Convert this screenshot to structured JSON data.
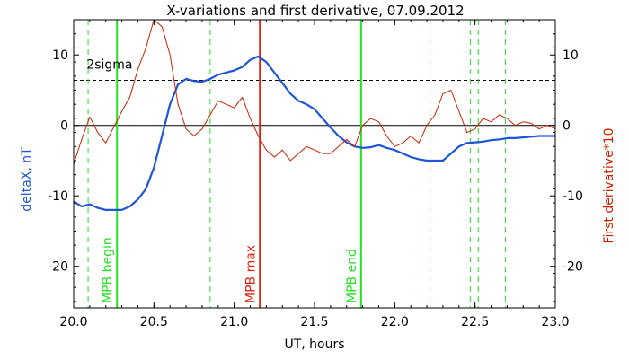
{
  "chart_data": {
    "type": "line",
    "title": "X-variations and first derivative, 07.09.2012",
    "xlabel": "UT, hours",
    "ylabel_left": "deltaX, nT",
    "ylabel_right": "First derivative*10",
    "xlim": [
      20.0,
      23.0
    ],
    "ylim": [
      -25.9,
      15.0
    ],
    "x_ticks": [
      20.0,
      20.5,
      21.0,
      21.5,
      22.0,
      22.5,
      23.0
    ],
    "x_tick_labels": [
      "20.0",
      "20.5",
      "21.0",
      "21.5",
      "22.0",
      "22.5",
      "23.0"
    ],
    "y_ticks": [
      10,
      0,
      -10,
      -20
    ],
    "y_tick_labels": [
      "10",
      "0",
      "-10",
      "-20"
    ],
    "grid": false,
    "colors": {
      "deltaX": "#1f55d6",
      "derivative": "#cc2200",
      "mpb_marker": "#22e022",
      "max_marker": "#e02010",
      "ref_line": "#000000"
    },
    "series": [
      {
        "name": "deltaX, nT",
        "x": [
          20.0,
          20.05,
          20.1,
          20.15,
          20.2,
          20.25,
          20.3,
          20.35,
          20.4,
          20.45,
          20.5,
          20.55,
          20.6,
          20.65,
          20.7,
          20.75,
          20.8,
          20.85,
          20.9,
          20.95,
          21.0,
          21.05,
          21.1,
          21.15,
          21.2,
          21.25,
          21.3,
          21.35,
          21.4,
          21.45,
          21.5,
          21.55,
          21.6,
          21.65,
          21.7,
          21.75,
          21.8,
          21.85,
          21.9,
          21.95,
          22.0,
          22.05,
          22.1,
          22.15,
          22.2,
          22.25,
          22.3,
          22.35,
          22.4,
          22.45,
          22.5,
          22.55,
          22.6,
          22.65,
          22.7,
          22.75,
          22.8,
          22.85,
          22.9,
          22.95,
          23.0
        ],
        "values": [
          -10.8,
          -11.5,
          -11.2,
          -11.7,
          -12.0,
          -12.0,
          -12.0,
          -11.5,
          -10.5,
          -9.0,
          -6.0,
          -1.5,
          3.0,
          5.8,
          6.6,
          6.3,
          6.2,
          6.6,
          7.2,
          7.5,
          7.8,
          8.3,
          9.3,
          9.8,
          9.0,
          7.5,
          6.0,
          4.5,
          3.5,
          3.0,
          2.3,
          1.0,
          -0.3,
          -1.5,
          -2.4,
          -3.0,
          -3.2,
          -3.1,
          -2.8,
          -3.2,
          -3.5,
          -4.0,
          -4.5,
          -4.8,
          -5.0,
          -5.0,
          -5.0,
          -4.0,
          -3.0,
          -2.5,
          -2.4,
          -2.3,
          -2.1,
          -2.0,
          -1.8,
          -1.8,
          -1.7,
          -1.6,
          -1.5,
          -1.5,
          -1.5
        ]
      },
      {
        "name": "First derivative*10",
        "x": [
          20.0,
          20.05,
          20.1,
          20.15,
          20.2,
          20.25,
          20.3,
          20.35,
          20.4,
          20.45,
          20.5,
          20.55,
          20.6,
          20.65,
          20.7,
          20.75,
          20.8,
          20.85,
          20.9,
          20.95,
          21.0,
          21.05,
          21.1,
          21.15,
          21.2,
          21.25,
          21.3,
          21.35,
          21.4,
          21.45,
          21.5,
          21.55,
          21.6,
          21.65,
          21.7,
          21.75,
          21.8,
          21.85,
          21.9,
          21.95,
          22.0,
          22.05,
          22.1,
          22.15,
          22.2,
          22.25,
          22.3,
          22.35,
          22.4,
          22.45,
          22.5,
          22.55,
          22.6,
          22.65,
          22.7,
          22.75,
          22.8,
          22.85,
          22.9,
          22.95,
          23.0
        ],
        "values": [
          -5.5,
          -2.0,
          1.2,
          -1.0,
          -2.5,
          -0.2,
          2.0,
          4.0,
          8.0,
          11.0,
          15.0,
          14.0,
          10.0,
          3.0,
          -0.5,
          -1.5,
          -0.5,
          1.5,
          3.5,
          3.0,
          2.5,
          4.0,
          1.0,
          -1.5,
          -3.5,
          -4.5,
          -3.5,
          -5.0,
          -4.0,
          -3.0,
          -3.5,
          -4.0,
          -4.0,
          -3.0,
          -2.0,
          -3.0,
          0.0,
          1.0,
          0.5,
          -1.5,
          -3.0,
          -2.5,
          -1.5,
          -2.5,
          0.0,
          1.5,
          4.5,
          5.0,
          2.0,
          -1.0,
          -0.5,
          1.0,
          0.5,
          1.5,
          1.0,
          0.0,
          0.5,
          0.3,
          -0.5,
          0.0,
          -0.5
        ]
      }
    ],
    "hlines": [
      {
        "y": 6.4,
        "style": "dashed",
        "label": "2sigma"
      },
      {
        "y": 0,
        "style": "solid",
        "label": ""
      }
    ],
    "vlines": [
      {
        "x": 20.27,
        "style": "solid",
        "color": "mpb_marker",
        "label": "MPB begin"
      },
      {
        "x": 21.16,
        "style": "solid",
        "color": "max_marker",
        "label": "MPB max"
      },
      {
        "x": 21.79,
        "style": "solid",
        "color": "mpb_marker",
        "label": "MPB end"
      },
      {
        "x": 20.09,
        "style": "dashed",
        "color": "mpb_marker",
        "label": ""
      },
      {
        "x": 20.85,
        "style": "dashed",
        "color": "mpb_marker",
        "label": ""
      },
      {
        "x": 22.22,
        "style": "dashed",
        "color": "mpb_marker",
        "label": ""
      },
      {
        "x": 22.47,
        "style": "dashed",
        "color": "mpb_marker",
        "label": ""
      },
      {
        "x": 22.52,
        "style": "dashed",
        "color": "mpb_marker",
        "label": ""
      },
      {
        "x": 22.69,
        "style": "dashed",
        "color": "mpb_marker",
        "label": ""
      }
    ]
  }
}
